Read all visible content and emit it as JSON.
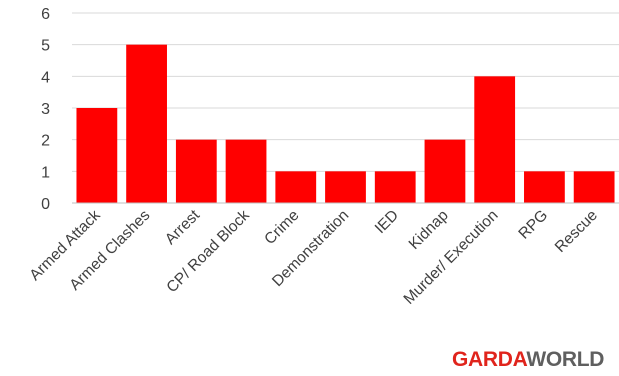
{
  "chart_data": {
    "type": "bar",
    "categories": [
      "Armed Attack",
      "Armed Clashes",
      "Arrest",
      "CP/ Road Block",
      "Crime",
      "Demonstration",
      "IED",
      "Kidnap",
      "Murder/ Execution",
      "RPG",
      "Rescue"
    ],
    "values": [
      3,
      5,
      2,
      2,
      1,
      1,
      1,
      2,
      4,
      1,
      1
    ],
    "ylim": [
      0,
      6
    ],
    "yticks": [
      "0",
      "1",
      "2",
      "3",
      "4",
      "5",
      "6"
    ],
    "title": "",
    "xlabel": "",
    "ylabel": "",
    "grid": true,
    "legend": "none",
    "bar_color": "#ff0000",
    "grid_color": "#d9d9d9"
  },
  "logo": {
    "part1": "GARDA",
    "part2": "WORLD"
  }
}
